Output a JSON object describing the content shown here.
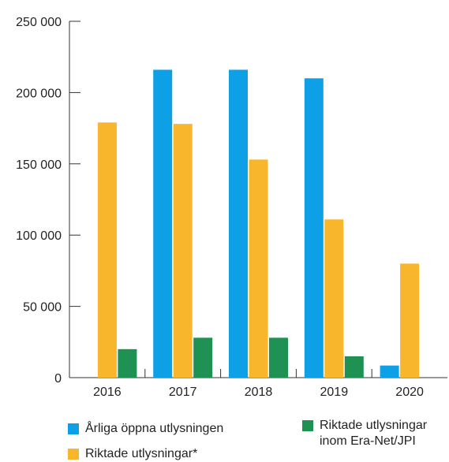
{
  "chart_data": {
    "type": "bar",
    "categories": [
      "2016",
      "2017",
      "2018",
      "2019",
      "2020"
    ],
    "series": [
      {
        "name": "Årliga öppna utlysningen",
        "color": "#0EA0E6",
        "values": [
          null,
          216000,
          216000,
          210000,
          8500
        ]
      },
      {
        "name": "Riktade utlysningar*",
        "color": "#F7B62C",
        "values": [
          179000,
          178000,
          153000,
          111000,
          80000
        ]
      },
      {
        "name": "Riktade utlysningar inom Era-Net/JPI",
        "color": "#1E9153",
        "values": [
          20000,
          28000,
          28000,
          15000,
          null
        ]
      }
    ],
    "y_ticks": [
      "0",
      "50 000",
      "100 000",
      "150 000",
      "200 000",
      "250 000"
    ],
    "ylim": [
      0,
      250000
    ],
    "title": "",
    "xlabel": "",
    "ylabel": "",
    "grid": false,
    "legend_position": "bottom"
  },
  "legend": {
    "item1": "Årliga öppna utlysningen",
    "item2": "Riktade utlysningar*",
    "item3_line1": "Riktade utlysningar",
    "item3_line2": "inom Era-Net/JPI"
  }
}
